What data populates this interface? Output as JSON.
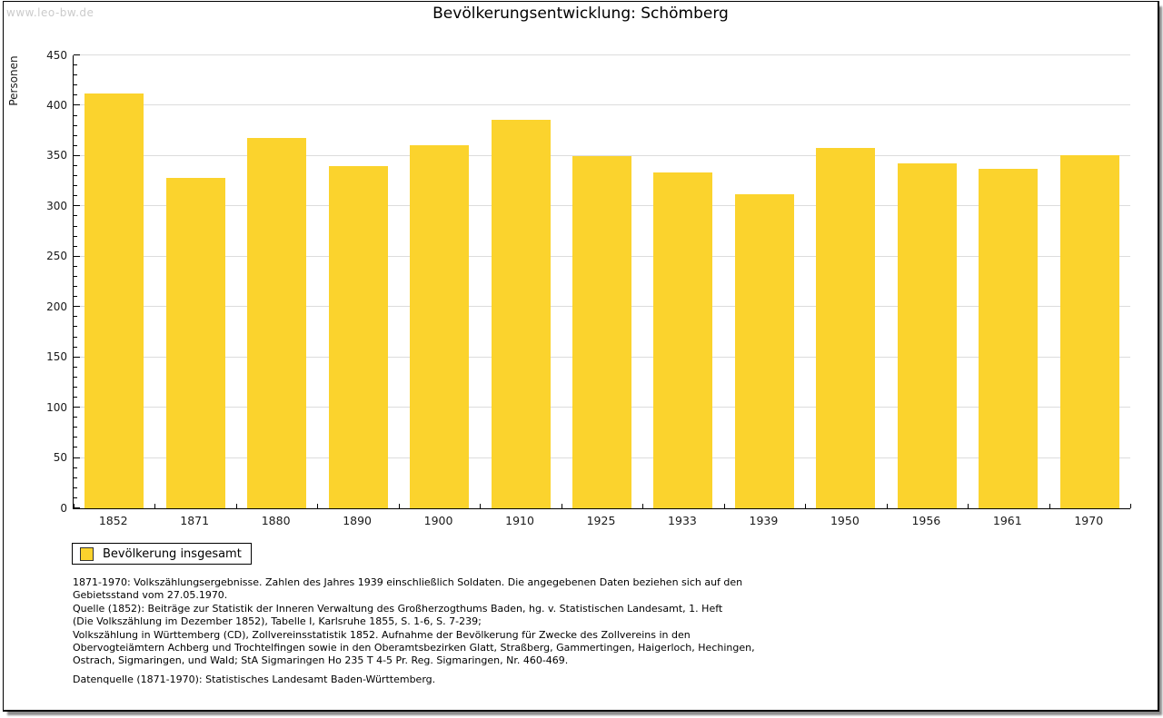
{
  "watermark": "www.leo-bw.de",
  "title": "Bevölkerungsentwicklung: Schömberg",
  "chart_data": {
    "type": "bar",
    "title": "Bevölkerungsentwicklung: Schömberg",
    "xlabel": "",
    "ylabel": "Personen",
    "ylim": [
      0,
      450
    ],
    "ytick_interval": 50,
    "y_minor_tick_interval": 10,
    "grid": "horizontal",
    "legend_position": "bottom-left",
    "bar_color": "#FBD32D",
    "categories": [
      "1852",
      "1871",
      "1880",
      "1890",
      "1900",
      "1910",
      "1925",
      "1933",
      "1939",
      "1950",
      "1956",
      "1961",
      "1970"
    ],
    "series": [
      {
        "name": "Bevölkerung insgesamt",
        "values": [
          412,
          328,
          368,
          340,
          361,
          386,
          350,
          334,
          312,
          358,
          343,
          337,
          351
        ]
      }
    ]
  },
  "legend": {
    "label": "Bevölkerung insgesamt",
    "swatch_color": "#FBD32D"
  },
  "footnotes": {
    "lines": [
      "1871-1970: Volkszählungsergebnisse. Zahlen des Jahres 1939 einschließlich Soldaten. Die angegebenen Daten beziehen sich auf den",
      "Gebietsstand vom 27.05.1970.",
      "Quelle (1852): Beiträge zur Statistik der Inneren Verwaltung des Großherzogthums Baden, hg. v. Statistischen Landesamt, 1. Heft",
      "(Die Volkszählung im Dezember 1852), Tabelle I, Karlsruhe 1855, S. 1-6, S. 7-239;",
      "Volkszählung in Württemberg (CD), Zollvereinsstatistik 1852. Aufnahme der Bevölkerung für Zwecke des Zollvereins in den",
      "Obervogteiämtern Achberg und Trochtelfingen sowie in den Oberamtsbezirken Glatt, Straßberg, Gammertingen, Haigerloch, Hechingen,",
      "Ostrach, Sigmaringen, und Wald; StA Sigmaringen Ho 235 T 4-5 Pr. Reg. Sigmaringen, Nr. 460-469."
    ]
  },
  "datasource": "Datenquelle (1871-1970): Statistisches Landesamt Baden-Württemberg."
}
